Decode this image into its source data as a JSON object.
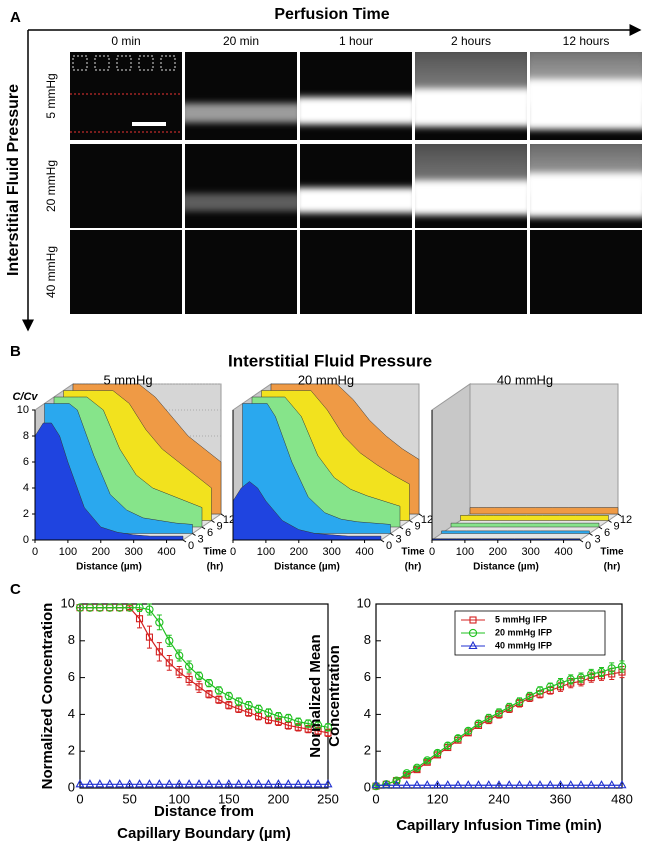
{
  "panel_a": {
    "label": "A",
    "x_title": "Perfusion Time",
    "y_title": "Interstitial Fluid Pressure",
    "columns": [
      "0 min",
      "20 min",
      "1 hour",
      "2 hours",
      "12 hours"
    ],
    "rows": [
      "5 mmHg",
      "20 mmHg",
      "40 mmHg"
    ]
  },
  "panel_b": {
    "label": "B",
    "title": "Interstitial Fluid Pressure"
  },
  "panel_c": {
    "label": "C"
  },
  "chart_data": [
    {
      "type": "waterfall",
      "title": "5 mmHg",
      "ylabel": "C/Cv",
      "xlabel": "Distance (µm)",
      "zlabel": [
        "Time",
        "(hr)"
      ],
      "x": [
        0,
        25,
        50,
        75,
        100,
        150,
        200,
        250,
        300,
        350,
        400,
        450
      ],
      "xlim": [
        0,
        450
      ],
      "xticks": [
        0,
        100,
        200,
        300,
        400
      ],
      "ylim": [
        0,
        10
      ],
      "yticks": [
        0,
        2,
        4,
        6,
        8,
        10
      ],
      "zlim": [
        0,
        12
      ],
      "zticks": [
        0,
        3,
        6,
        9,
        12
      ],
      "series": [
        {
          "time": 0,
          "color": "#1f44e0",
          "values": [
            8,
            9,
            9,
            8,
            6,
            2.5,
            1,
            0.6,
            0.4,
            0.3,
            0.3,
            0.3
          ]
        },
        {
          "time": 3,
          "color": "#2aa8ee",
          "values": [
            10,
            10,
            10,
            10,
            9.5,
            6,
            3,
            1.8,
            1.2,
            1,
            0.8,
            0.7
          ]
        },
        {
          "time": 6,
          "color": "#86e48a",
          "values": [
            10,
            10,
            10,
            10,
            10,
            9,
            6,
            4,
            3,
            2.5,
            2,
            1.5
          ]
        },
        {
          "time": 9,
          "color": "#f2e21e",
          "values": [
            10,
            10,
            10,
            10,
            10,
            10,
            9,
            7,
            5.5,
            4.5,
            3.5,
            2.5
          ]
        },
        {
          "time": 12,
          "color": "#ef9a45",
          "values": [
            10,
            10,
            10,
            10,
            10,
            10,
            10,
            9,
            7.5,
            6,
            5,
            4
          ]
        }
      ]
    },
    {
      "type": "waterfall",
      "title": "20 mmHg",
      "xlabel": "Distance (µm)",
      "zlabel": [
        "Time",
        "(hr)"
      ],
      "x": [
        0,
        25,
        50,
        75,
        100,
        150,
        200,
        250,
        300,
        350,
        400,
        450
      ],
      "xlim": [
        0,
        450
      ],
      "xticks": [
        0,
        100,
        200,
        300,
        400
      ],
      "ylim": [
        0,
        10
      ],
      "zlim": [
        0,
        12
      ],
      "zticks": [
        0,
        3,
        6,
        9,
        12
      ],
      "series": [
        {
          "time": 0,
          "color": "#1f44e0",
          "values": [
            3,
            4,
            4.5,
            4,
            3,
            1.5,
            0.8,
            0.5,
            0.4,
            0.3,
            0.3,
            0.3
          ]
        },
        {
          "time": 3,
          "color": "#2aa8ee",
          "values": [
            10,
            10,
            10,
            10,
            9,
            5.5,
            2.8,
            1.6,
            1.1,
            0.9,
            0.8,
            0.7
          ]
        },
        {
          "time": 6,
          "color": "#86e48a",
          "values": [
            10,
            10,
            10,
            10,
            10,
            8.5,
            5.5,
            3.8,
            2.9,
            2.4,
            2,
            1.6
          ]
        },
        {
          "time": 9,
          "color": "#f2e21e",
          "values": [
            10,
            10,
            10,
            10,
            10,
            10,
            8.5,
            6.5,
            5.2,
            4.3,
            3.5,
            2.8
          ]
        },
        {
          "time": 12,
          "color": "#ef9a45",
          "values": [
            10,
            10,
            10,
            10,
            10,
            10,
            10,
            8.8,
            7.2,
            6,
            5,
            4.2
          ]
        }
      ]
    },
    {
      "type": "waterfall",
      "title": "40 mmHg",
      "xlabel": "Distance (µm)",
      "zlabel": [
        "Time",
        "(hr)"
      ],
      "x": [
        0,
        25,
        50,
        75,
        100,
        150,
        200,
        250,
        300,
        350,
        400,
        450
      ],
      "xlim": [
        0,
        450
      ],
      "xticks": [
        0,
        100,
        200,
        300,
        400
      ],
      "ylim": [
        0,
        10
      ],
      "zlim": [
        0,
        12
      ],
      "zticks": [
        0,
        3,
        6,
        9,
        12
      ],
      "series": [
        {
          "time": 0,
          "color": "#1f44e0",
          "values": [
            0.1,
            0.1,
            0.1,
            0.1,
            0.1,
            0.1,
            0.1,
            0.1,
            0.1,
            0.1,
            0.1,
            0.1
          ]
        },
        {
          "time": 3,
          "color": "#2aa8ee",
          "values": [
            0.2,
            0.2,
            0.2,
            0.2,
            0.2,
            0.2,
            0.2,
            0.2,
            0.2,
            0.2,
            0.2,
            0.2
          ]
        },
        {
          "time": 6,
          "color": "#86e48a",
          "values": [
            0.3,
            0.3,
            0.3,
            0.3,
            0.3,
            0.3,
            0.3,
            0.3,
            0.3,
            0.3,
            0.3,
            0.3
          ]
        },
        {
          "time": 9,
          "color": "#f2e21e",
          "values": [
            0.4,
            0.4,
            0.4,
            0.4,
            0.4,
            0.4,
            0.4,
            0.4,
            0.4,
            0.4,
            0.4,
            0.4
          ]
        },
        {
          "time": 12,
          "color": "#ef9a45",
          "values": [
            0.5,
            0.5,
            0.5,
            0.5,
            0.5,
            0.5,
            0.5,
            0.5,
            0.5,
            0.5,
            0.5,
            0.5
          ]
        }
      ]
    },
    {
      "type": "line",
      "ylabel": [
        "Normalized Concentration"
      ],
      "xlabel": [
        "Distance from",
        "Capillary Boundary (µm)"
      ],
      "x": [
        0,
        10,
        20,
        30,
        40,
        50,
        60,
        70,
        80,
        90,
        100,
        110,
        120,
        130,
        140,
        150,
        160,
        170,
        180,
        190,
        200,
        210,
        220,
        230,
        240,
        250
      ],
      "xlim": [
        0,
        250
      ],
      "xticks": [
        0,
        50,
        100,
        150,
        200,
        250
      ],
      "ylim": [
        0,
        10
      ],
      "yticks": [
        0,
        2,
        4,
        6,
        8,
        10
      ],
      "series": [
        {
          "color": "#d42020",
          "marker": "square",
          "values": [
            9.8,
            9.8,
            9.8,
            9.8,
            9.8,
            9.8,
            9.2,
            8.2,
            7.4,
            6.8,
            6.3,
            5.9,
            5.5,
            5.1,
            4.8,
            4.5,
            4.3,
            4.1,
            3.9,
            3.7,
            3.6,
            3.4,
            3.3,
            3.2,
            3.1,
            3.0
          ],
          "errors": [
            0,
            0,
            0,
            0,
            0,
            0.1,
            0.5,
            0.6,
            0.5,
            0.4,
            0.3,
            0.3,
            0.3,
            0.2,
            0.2,
            0.2,
            0.2,
            0.2,
            0.2,
            0.2,
            0.2,
            0.2,
            0.2,
            0.2,
            0.2,
            0.2
          ]
        },
        {
          "color": "#1fc01f",
          "marker": "circle",
          "values": [
            9.8,
            9.8,
            9.8,
            9.8,
            9.8,
            9.8,
            9.8,
            9.7,
            9.0,
            8.0,
            7.2,
            6.6,
            6.1,
            5.7,
            5.3,
            5.0,
            4.7,
            4.5,
            4.3,
            4.1,
            3.9,
            3.8,
            3.6,
            3.5,
            3.4,
            3.3
          ],
          "errors": [
            0,
            0,
            0,
            0,
            0,
            0,
            0.2,
            0.3,
            0.4,
            0.3,
            0.3,
            0.3,
            0.2,
            0.2,
            0.2,
            0.2,
            0.2,
            0.2,
            0.2,
            0.2,
            0.2,
            0.2,
            0.2,
            0.2,
            0.2,
            0.2
          ]
        },
        {
          "color": "#2030d0",
          "marker": "triangle",
          "values": [
            0.2,
            0.2,
            0.2,
            0.2,
            0.2,
            0.2,
            0.2,
            0.2,
            0.2,
            0.2,
            0.2,
            0.2,
            0.2,
            0.2,
            0.2,
            0.2,
            0.2,
            0.2,
            0.2,
            0.2,
            0.2,
            0.2,
            0.2,
            0.2,
            0.2,
            0.2
          ]
        }
      ]
    },
    {
      "type": "line",
      "ylabel": [
        "Normalized Mean",
        "Concentration"
      ],
      "xlabel": [
        "Capillary Infusion Time (min)"
      ],
      "x": [
        0,
        20,
        40,
        60,
        80,
        100,
        120,
        140,
        160,
        180,
        200,
        220,
        240,
        260,
        280,
        300,
        320,
        340,
        360,
        380,
        400,
        420,
        440,
        460,
        480
      ],
      "xlim": [
        0,
        480
      ],
      "xticks": [
        0,
        120,
        240,
        360,
        480
      ],
      "ylim": [
        0,
        10
      ],
      "yticks": [
        0,
        2,
        4,
        6,
        8,
        10
      ],
      "legend": "upper-right",
      "series": [
        {
          "name": "5 mmHg IFP",
          "color": "#d42020",
          "marker": "square",
          "values": [
            0.1,
            0.2,
            0.4,
            0.7,
            1.0,
            1.4,
            1.8,
            2.2,
            2.6,
            3.0,
            3.4,
            3.7,
            4.0,
            4.3,
            4.6,
            4.9,
            5.1,
            5.3,
            5.5,
            5.7,
            5.8,
            6.0,
            6.1,
            6.2,
            6.3
          ],
          "errors": [
            0.05,
            0.05,
            0.1,
            0.1,
            0.1,
            0.1,
            0.15,
            0.15,
            0.15,
            0.15,
            0.15,
            0.2,
            0.2,
            0.2,
            0.2,
            0.2,
            0.2,
            0.2,
            0.25,
            0.25,
            0.25,
            0.25,
            0.25,
            0.3,
            0.3
          ]
        },
        {
          "name": "20 mmHg IFP",
          "color": "#1fc01f",
          "marker": "circle",
          "values": [
            0.1,
            0.2,
            0.4,
            0.8,
            1.1,
            1.5,
            1.9,
            2.3,
            2.7,
            3.1,
            3.5,
            3.8,
            4.1,
            4.4,
            4.7,
            5.0,
            5.3,
            5.5,
            5.7,
            5.9,
            6.0,
            6.2,
            6.3,
            6.5,
            6.6
          ],
          "errors": [
            0.05,
            0.05,
            0.1,
            0.1,
            0.1,
            0.1,
            0.15,
            0.15,
            0.15,
            0.15,
            0.15,
            0.2,
            0.2,
            0.2,
            0.2,
            0.2,
            0.2,
            0.2,
            0.25,
            0.25,
            0.25,
            0.25,
            0.25,
            0.3,
            0.3
          ]
        },
        {
          "name": "40 mmHg IFP",
          "color": "#2030d0",
          "marker": "triangle",
          "values": [
            0.15,
            0.15,
            0.15,
            0.15,
            0.15,
            0.15,
            0.15,
            0.15,
            0.15,
            0.15,
            0.15,
            0.15,
            0.15,
            0.15,
            0.15,
            0.15,
            0.15,
            0.15,
            0.15,
            0.15,
            0.15,
            0.15,
            0.15,
            0.15,
            0.15
          ]
        }
      ]
    }
  ]
}
